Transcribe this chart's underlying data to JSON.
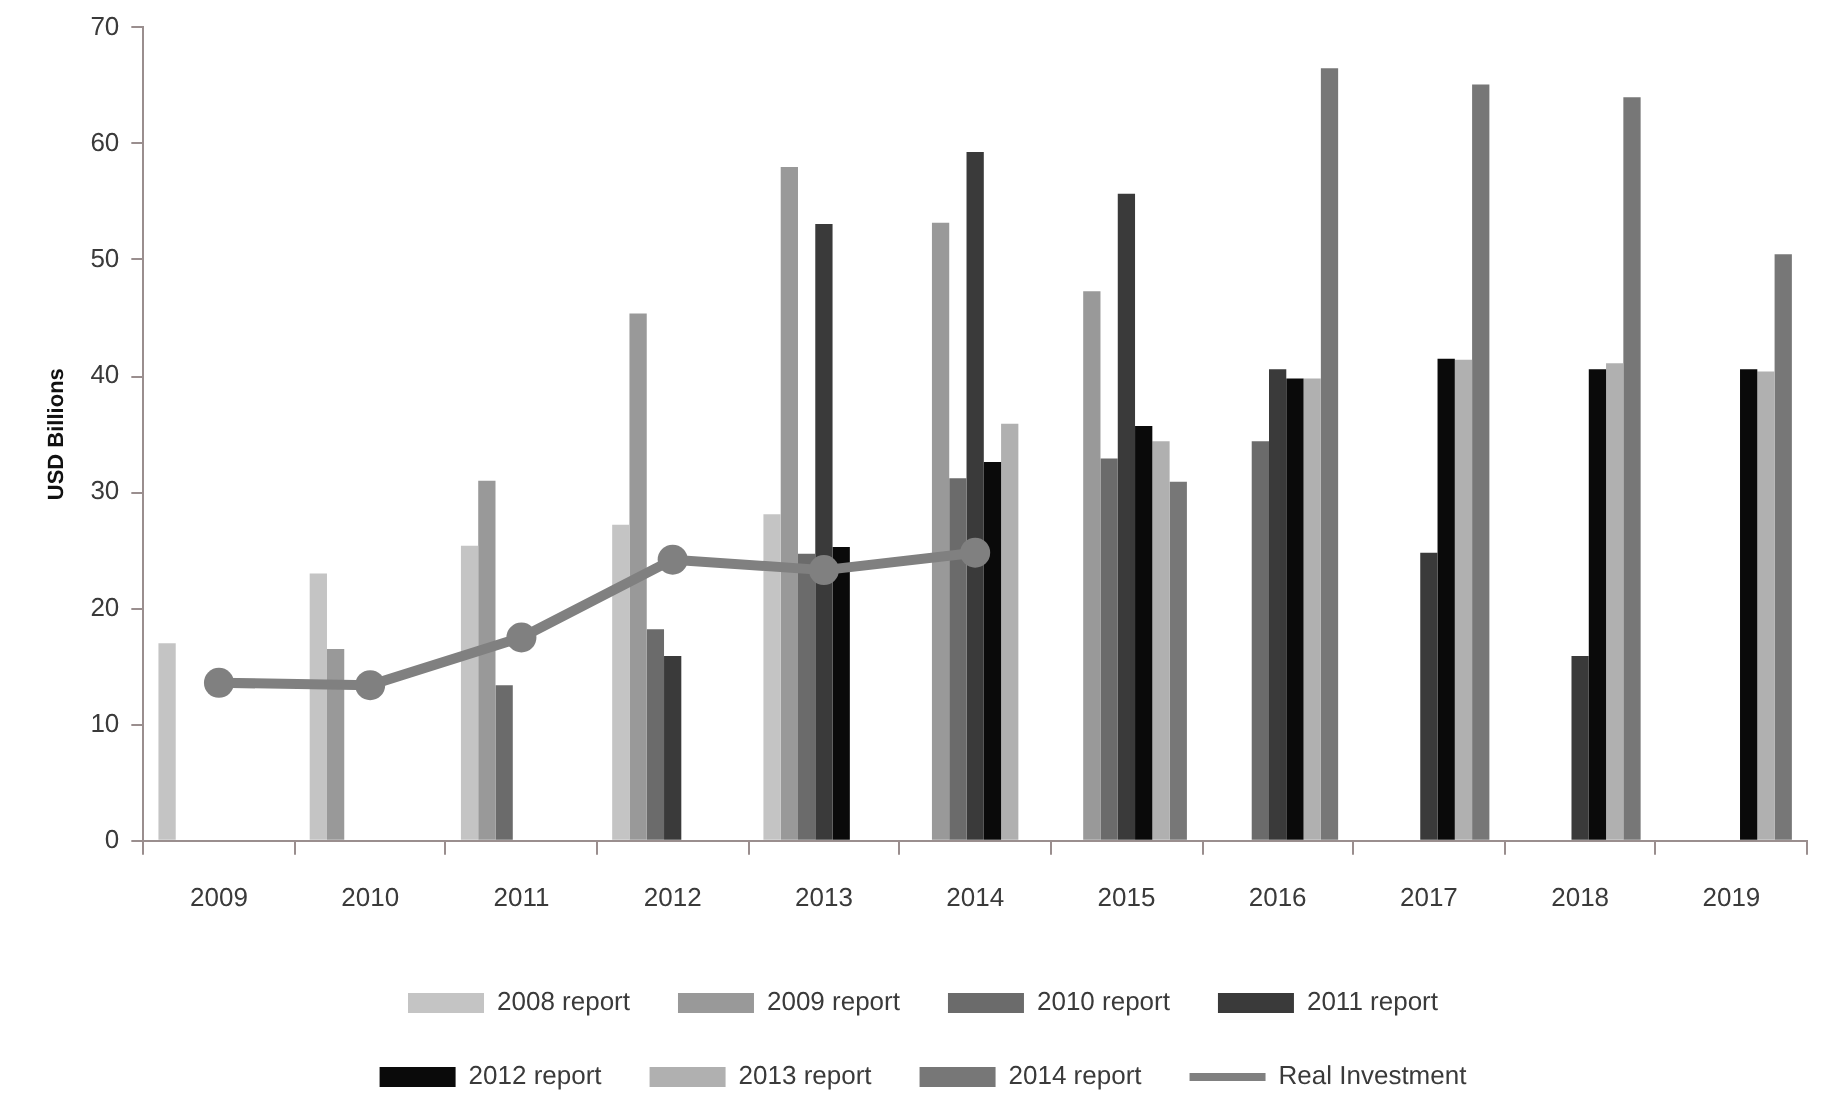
{
  "chart_data": {
    "type": "bar",
    "ylabel": "USD Billions",
    "categories": [
      "2009",
      "2010",
      "2011",
      "2012",
      "2013",
      "2014",
      "2015",
      "2016",
      "2017",
      "2018",
      "2019"
    ],
    "series": [
      {
        "name": "2008 report",
        "color": "#c4c4c4",
        "values": [
          17,
          23,
          25.4,
          27.2,
          28.1,
          null,
          null,
          null,
          null,
          null,
          null
        ]
      },
      {
        "name": "2009 report",
        "color": "#999999",
        "values": [
          null,
          16.5,
          31,
          45.4,
          58,
          53.2,
          47.3,
          null,
          null,
          null,
          null
        ]
      },
      {
        "name": "2010 report",
        "color": "#6b6b6b",
        "values": [
          null,
          null,
          13.4,
          18.2,
          24.7,
          31.2,
          32.9,
          34.4,
          null,
          null,
          null
        ]
      },
      {
        "name": "2011 report",
        "color": "#3a3a3a",
        "values": [
          null,
          null,
          null,
          15.9,
          53.1,
          59.3,
          55.7,
          40.6,
          24.8,
          15.9,
          null
        ]
      },
      {
        "name": "2012 report",
        "color": "#0a0a0a",
        "values": [
          null,
          null,
          null,
          null,
          25.3,
          32.6,
          35.7,
          39.8,
          41.5,
          40.6,
          40.6
        ]
      },
      {
        "name": "2013 report",
        "color": "#b0b0b0",
        "values": [
          null,
          null,
          null,
          null,
          null,
          35.9,
          34.4,
          39.8,
          41.4,
          41.1,
          40.4
        ]
      },
      {
        "name": "2014 report",
        "color": "#777777",
        "values": [
          null,
          null,
          null,
          null,
          null,
          null,
          30.9,
          66.5,
          65.1,
          64,
          50.5
        ]
      },
      {
        "name": "Real Investment",
        "type": "line",
        "color": "#808080",
        "values": [
          13.6,
          13.4,
          17.5,
          24.2,
          23.3,
          24.8,
          null,
          null,
          null,
          null,
          null
        ]
      }
    ],
    "ylim": [
      0,
      70
    ],
    "yticks": [
      0,
      10,
      20,
      30,
      40,
      50,
      60,
      70
    ],
    "grid": false,
    "legend": "bottom",
    "marker": "circle"
  }
}
